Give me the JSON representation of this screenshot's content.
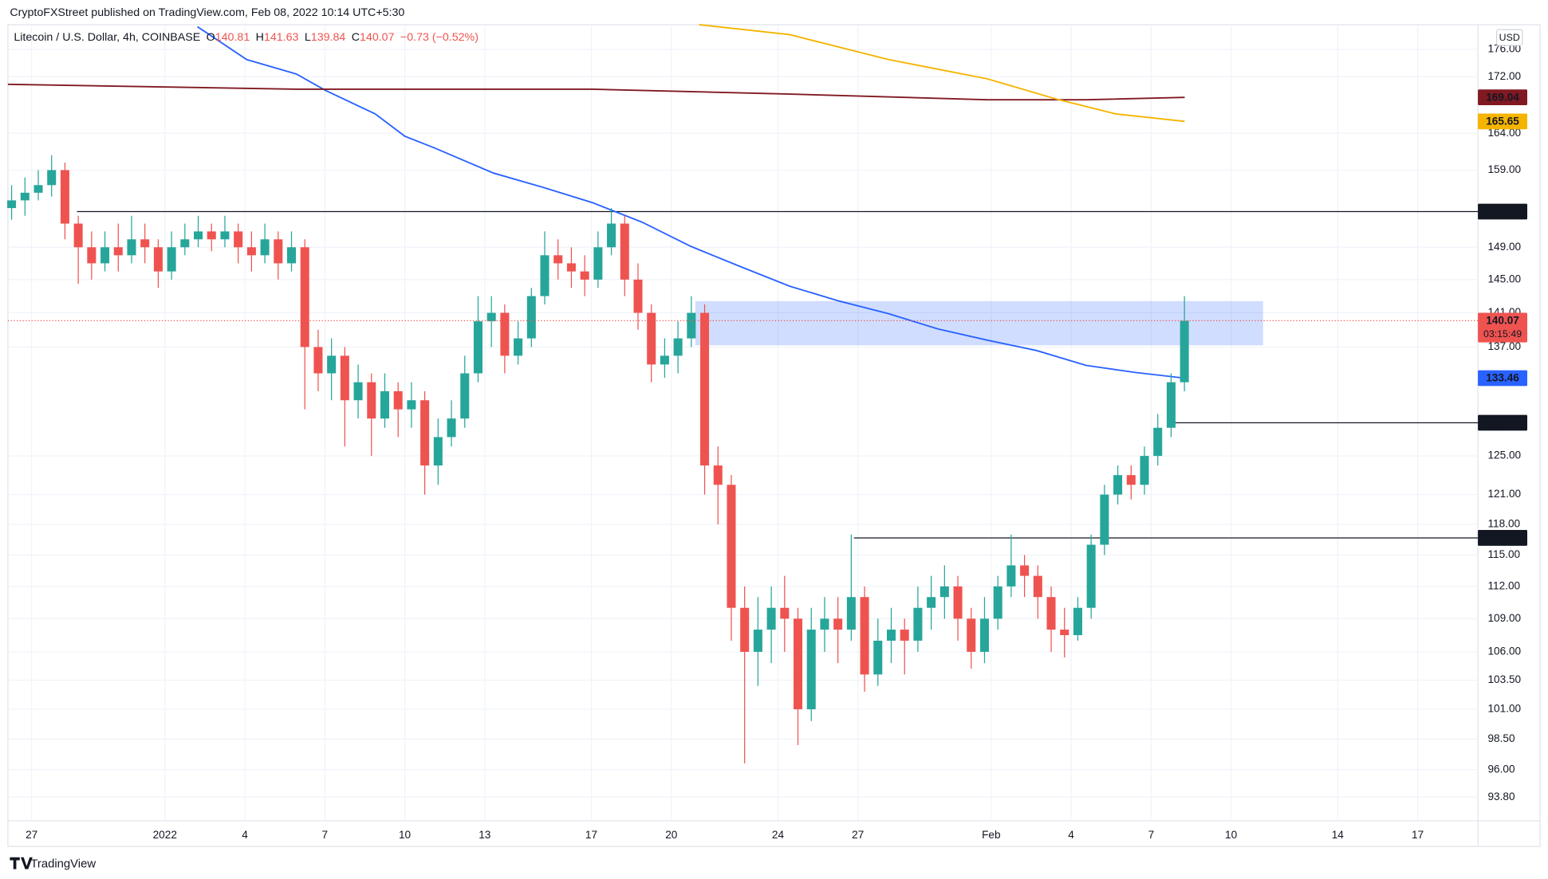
{
  "chart_data": {
    "type": "candlestick",
    "publisher": "CryptoFXStreet published on TradingView.com, Feb 08, 2022 10:14 UTC+5:30",
    "symbol_info": "Litecoin / U.S. Dollar, 4h, COINBASE",
    "ohlc_legend": [
      {
        "label": "O",
        "value": 140.81
      },
      {
        "label": "H",
        "value": 141.63
      },
      {
        "label": "L",
        "value": 139.84
      },
      {
        "label": "C",
        "value": 140.07
      }
    ],
    "change": "−0.73 (−0.52%)",
    "currency": "USD",
    "countdown": "03:15:49",
    "watermark": "TradingView",
    "log_scale": true,
    "grid": true,
    "up_color": "#26a69a",
    "down_color": "#ef5350",
    "xlim": [
      -0.89,
      54.26
    ],
    "ylim": [
      91.95,
      179.7
    ],
    "xticks": [
      {
        "value": 0,
        "label": "27"
      },
      {
        "value": 5,
        "label": "2022"
      },
      {
        "value": 8,
        "label": "4"
      },
      {
        "value": 11,
        "label": "7"
      },
      {
        "value": 14,
        "label": "10"
      },
      {
        "value": 17,
        "label": "13"
      },
      {
        "value": 21,
        "label": "17"
      },
      {
        "value": 24,
        "label": "20"
      },
      {
        "value": 28,
        "label": "24"
      },
      {
        "value": 31,
        "label": "27"
      },
      {
        "value": 36,
        "label": "Feb"
      },
      {
        "value": 39,
        "label": "4"
      },
      {
        "value": 42,
        "label": "7"
      },
      {
        "value": 45,
        "label": "10"
      },
      {
        "value": 49,
        "label": "14"
      },
      {
        "value": 52,
        "label": "17"
      }
    ],
    "yticks": [
      {
        "value": 176,
        "label": "176.00"
      },
      {
        "value": 172,
        "label": "172.00"
      },
      {
        "value": 164,
        "label": "164.00"
      },
      {
        "value": 159,
        "label": "159.00"
      },
      {
        "value": 149,
        "label": "149.00"
      },
      {
        "value": 145,
        "label": "145.00"
      },
      {
        "value": 141,
        "label": "141.00"
      },
      {
        "value": 137,
        "label": "137.00"
      },
      {
        "value": 125,
        "label": "125.00"
      },
      {
        "value": 121,
        "label": "121.00"
      },
      {
        "value": 118,
        "label": "118.00"
      },
      {
        "value": 115,
        "label": "115.00"
      },
      {
        "value": 112,
        "label": "112.00"
      },
      {
        "value": 109,
        "label": "109.00"
      },
      {
        "value": 106,
        "label": "106.00"
      },
      {
        "value": 103.5,
        "label": "103.50"
      },
      {
        "value": 101,
        "label": "101.00"
      },
      {
        "value": 98.5,
        "label": "98.50"
      },
      {
        "value": 96,
        "label": "96.00"
      },
      {
        "value": 93.8,
        "label": "93.80"
      }
    ],
    "candles": {
      "x": [
        -0.75,
        -0.25,
        0.25,
        0.75,
        1.25,
        1.75,
        2.25,
        2.75,
        3.25,
        3.75,
        4.25,
        4.75,
        5.25,
        5.75,
        6.25,
        6.75,
        7.25,
        7.75,
        8.25,
        8.75,
        9.25,
        9.75,
        10.25,
        10.75,
        11.25,
        11.75,
        12.25,
        12.75,
        13.25,
        13.75,
        14.25,
        14.75,
        15.25,
        15.75,
        16.25,
        16.75,
        17.25,
        17.75,
        18.25,
        18.75,
        19.25,
        19.75,
        20.25,
        20.75,
        21.25,
        21.75,
        22.25,
        22.75,
        23.25,
        23.75,
        24.25,
        24.75,
        25.25,
        25.75,
        26.25,
        26.75,
        27.25,
        27.75,
        28.25,
        28.75,
        29.25,
        29.75,
        30.25,
        30.75,
        31.25,
        31.75,
        32.25,
        32.75,
        33.25,
        33.75,
        34.25,
        34.75,
        35.25,
        35.75,
        36.25,
        36.75,
        37.25,
        37.75,
        38.25,
        38.75,
        39.25,
        39.75,
        40.25,
        40.75,
        41.25,
        41.75,
        42.25,
        42.75,
        43.25
      ],
      "open": [
        154,
        155,
        156,
        157,
        159,
        152,
        149,
        147,
        149,
        148,
        150,
        149,
        146,
        149,
        150,
        151,
        150,
        151,
        149,
        148,
        150,
        147,
        149,
        137,
        134,
        136,
        131,
        133,
        129,
        132,
        130,
        131,
        124,
        127,
        129,
        134,
        140,
        141,
        136,
        138,
        143,
        148,
        147,
        146,
        145,
        149,
        152,
        145,
        141,
        135,
        136,
        138,
        141,
        124,
        122,
        110,
        106,
        108,
        110,
        109,
        101,
        108,
        109,
        108,
        111,
        104,
        107,
        108,
        107,
        110,
        111,
        112,
        109,
        106,
        109,
        112,
        114,
        113,
        111,
        108,
        107.5,
        110,
        116,
        121,
        123,
        122,
        125,
        128,
        133
      ],
      "high": [
        157,
        158,
        159,
        161,
        160,
        153,
        151,
        151,
        152,
        153,
        152,
        150,
        151,
        152,
        153,
        152,
        153,
        152,
        151,
        152,
        151,
        151,
        150,
        139,
        138,
        137,
        135,
        134,
        134,
        133,
        133,
        132,
        129,
        131,
        136,
        143,
        143,
        142,
        140,
        144,
        151,
        150,
        149,
        148,
        151,
        154,
        153,
        147,
        142,
        138,
        140,
        143,
        142,
        126,
        123,
        112,
        111,
        112,
        113,
        110,
        110,
        111,
        111,
        117,
        112,
        109,
        110,
        109,
        112,
        113,
        114,
        113,
        110,
        111,
        113,
        117,
        115,
        114,
        112,
        110,
        111,
        117,
        122,
        124,
        124,
        126,
        129.5,
        134,
        143
      ],
      "low": [
        152.5,
        153,
        155,
        155.5,
        150,
        144.5,
        145,
        146,
        146,
        147,
        147,
        144,
        145,
        148,
        149,
        148.5,
        149,
        147,
        146,
        147,
        145,
        146,
        130,
        132,
        131,
        126,
        129,
        125,
        128,
        127,
        128,
        121,
        122,
        126,
        128,
        133,
        137,
        134,
        135,
        137,
        142,
        145,
        144,
        143,
        144,
        148,
        143,
        139,
        133,
        133.5,
        134,
        137,
        121,
        118,
        107,
        96.5,
        103,
        105,
        106,
        98,
        100,
        106,
        105,
        107,
        102.5,
        103,
        105,
        104,
        106,
        108,
        109,
        107,
        104.5,
        105,
        108,
        111,
        111,
        109,
        106,
        105.5,
        107,
        109,
        115,
        120,
        120.5,
        121,
        124,
        127,
        132
      ],
      "close": [
        155,
        156,
        157,
        159,
        152,
        149,
        147,
        149,
        148,
        150,
        149,
        146,
        149,
        150,
        151,
        150,
        151,
        149,
        148,
        150,
        147,
        149,
        137,
        134,
        136,
        131,
        133,
        129,
        132,
        130,
        131,
        124,
        127,
        129,
        134,
        140,
        141,
        136,
        138,
        143,
        148,
        147,
        146,
        145,
        149,
        152,
        145,
        141,
        135,
        136,
        138,
        141,
        124,
        122,
        110,
        106,
        108,
        110,
        109,
        101,
        108,
        109,
        108,
        111,
        104,
        107,
        108,
        107,
        110,
        111,
        112,
        109,
        106,
        109,
        112,
        114,
        113,
        111,
        108,
        107.5,
        110,
        116,
        121,
        123,
        122,
        125,
        128,
        133,
        140.07
      ]
    },
    "lines": [
      {
        "color": "#2962ff",
        "x": [
          6.22,
          8.07,
          9.93,
          11.04,
          12.89,
          14.0,
          15.11,
          17.33,
          19.19,
          21.04,
          22.89,
          24.74,
          26.59,
          28.44,
          30.3,
          32.15,
          34.0,
          35.85,
          37.7,
          39.56,
          41.41,
          43.26
        ],
        "values": [
          179.4,
          174.5,
          172.4,
          170.0,
          166.7,
          163.6,
          162.0,
          158.6,
          156.7,
          154.7,
          152.2,
          149.1,
          146.6,
          144.2,
          142.4,
          140.9,
          139.1,
          137.8,
          136.6,
          134.9,
          134.1,
          133.46
        ],
        "label_text_color": "#ffffff"
      },
      {
        "color": "#801922",
        "x": [
          -0.89,
          9.93,
          21.04,
          28.44,
          35.85,
          39.56,
          43.26
        ],
        "values": [
          170.9,
          170.2,
          170.2,
          169.5,
          168.7,
          168.7,
          169.04
        ],
        "label_text_color": "#ffffff"
      },
      {
        "color": "#f5b400",
        "x": [
          25.04,
          28.44,
          32.15,
          35.85,
          38.44,
          40.67,
          43.26
        ],
        "values": [
          179.7,
          178.2,
          174.5,
          171.7,
          168.8,
          166.7,
          165.65
        ],
        "label_text_color": "#131722"
      }
    ],
    "levels": [
      {
        "value": 153.54,
        "x0": 1.7
      },
      {
        "value": 128.54,
        "x0": 42.7
      },
      {
        "value": 116.67,
        "x0": 30.85
      }
    ],
    "zone": {
      "x": [
        24.9,
        46.2
      ],
      "y": [
        137.2,
        142.4
      ],
      "color": "#2962ff"
    }
  }
}
